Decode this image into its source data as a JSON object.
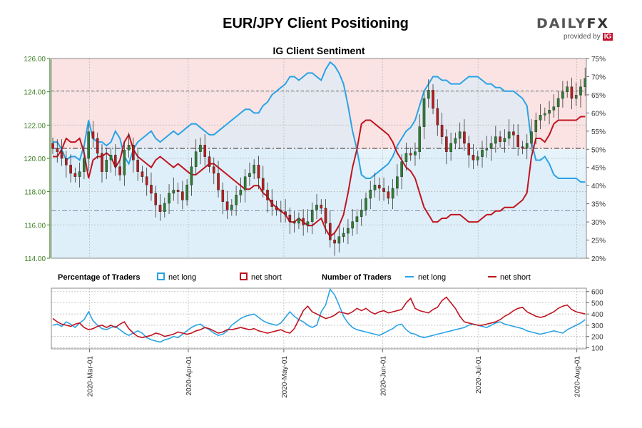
{
  "header": {
    "title": "EUR/JPY Client Positioning",
    "brand_name_left": "DAILY",
    "brand_name_right": "FX",
    "brand_sub": "provided by",
    "brand_ig": "IG"
  },
  "colors": {
    "net_long": "#2aa3e6",
    "net_short": "#c0141f",
    "candle_up": "#2e7d32",
    "candle_down": "#b71c1c",
    "long_fill": "#e6f3fb",
    "short_fill": "#fbe3e3",
    "price_axis": "#3a7d1f"
  },
  "chart_data": [
    {
      "type": "candlestick",
      "title": "IG Client Sentiment",
      "ylim": [
        114,
        126
      ],
      "yticks": [
        "114.00",
        "116.00",
        "118.00",
        "120.00",
        "122.00",
        "124.00",
        "126.00"
      ],
      "y2lim": [
        20,
        75
      ],
      "y2ticks": [
        "20%",
        "25%",
        "30%",
        "35%",
        "40%",
        "45%",
        "50%",
        "55%",
        "60%",
        "65%",
        "70%",
        "75%"
      ],
      "x_start": "2020-02-18",
      "x_end": "2020-08-04",
      "xticks": [
        "2020-Mar-01",
        "2020-Apr-01",
        "2020-May-01",
        "2020-Jun-01",
        "2020-Jul-01",
        "2020-Aug-01"
      ],
      "reference_lines": {
        "price_dashdot": 120.6,
        "price_dashed_upper": 124.05,
        "price_dashed_lower": 116.85
      },
      "close": [
        120.6,
        120.4,
        120.0,
        119.6,
        119.1,
        118.9,
        119.2,
        120.0,
        121.6,
        121.2,
        120.3,
        119.2,
        119.9,
        120.2,
        119.5,
        119.0,
        120.5,
        120.8,
        119.9,
        119.2,
        118.9,
        118.4,
        117.9,
        117.2,
        116.8,
        117.3,
        117.9,
        118.1,
        118.0,
        117.5,
        118.4,
        119.5,
        120.4,
        120.8,
        120.1,
        119.5,
        119.1,
        118.1,
        117.4,
        116.9,
        117.2,
        117.8,
        118.1,
        118.9,
        119.1,
        119.6,
        118.8,
        118.1,
        117.5,
        117.1,
        116.9,
        116.8,
        116.6,
        116.2,
        116.1,
        116.4,
        116.0,
        116.2,
        116.9,
        117.2,
        117.0,
        116.1,
        115.1,
        114.9,
        115.3,
        115.5,
        115.8,
        116.2,
        116.5,
        116.9,
        117.6,
        118.1,
        118.4,
        118.2,
        118.0,
        117.6,
        118.2,
        118.9,
        119.8,
        120.3,
        120.2,
        120.4,
        121.9,
        123.6,
        124.1,
        123.0,
        122.0,
        121.3,
        120.4,
        120.9,
        121.2,
        121.6,
        120.9,
        120.2,
        119.9,
        120.1,
        120.5,
        120.6,
        120.9,
        121.3,
        121.0,
        121.2,
        121.6,
        121.4,
        120.7,
        120.6,
        120.9,
        121.6,
        122.3,
        122.6,
        122.7,
        122.9,
        123.1,
        123.6,
        124.0,
        124.3,
        123.6,
        123.8,
        124.3,
        124.8
      ],
      "series": [
        {
          "name": "net long",
          "values": [
            52,
            52,
            50,
            47,
            48,
            48,
            47,
            51,
            58,
            53,
            52,
            52,
            51,
            52,
            55,
            53,
            48,
            46,
            50,
            52,
            53,
            54,
            55,
            53,
            52,
            53,
            54,
            55,
            54,
            55,
            56,
            57,
            57,
            56,
            55,
            54,
            54,
            55,
            56,
            57,
            58,
            59,
            60,
            61,
            61,
            60,
            60,
            62,
            63,
            65,
            66,
            67,
            68,
            70,
            70,
            69,
            70,
            71,
            71,
            70,
            69,
            72,
            74,
            73,
            71,
            68,
            62,
            55,
            50,
            43,
            42,
            42,
            43,
            44,
            45,
            46,
            48,
            51,
            53,
            55,
            56,
            58,
            62,
            66,
            68,
            70,
            70,
            69,
            69,
            68,
            68,
            68,
            69,
            70,
            70,
            70,
            69,
            68,
            68,
            67,
            67,
            66,
            66,
            66,
            65,
            64,
            62,
            52,
            47,
            47,
            48,
            46,
            43,
            42,
            42,
            42,
            42,
            42,
            41,
            41
          ]
        },
        {
          "name": "net short",
          "values": [
            48,
            48,
            50,
            53,
            52,
            52,
            53,
            49,
            42,
            47,
            48,
            48,
            49,
            48,
            45,
            47,
            52,
            54,
            50,
            48,
            47,
            46,
            45,
            47,
            48,
            47,
            46,
            45,
            46,
            45,
            44,
            43,
            43,
            44,
            45,
            46,
            46,
            45,
            44,
            43,
            42,
            41,
            40,
            39,
            39,
            40,
            40,
            38,
            37,
            35,
            34,
            33,
            32,
            30,
            30,
            31,
            30,
            29,
            29,
            30,
            31,
            28,
            26,
            27,
            29,
            32,
            38,
            45,
            50,
            57,
            58,
            58,
            57,
            56,
            55,
            54,
            52,
            49,
            47,
            45,
            44,
            42,
            38,
            34,
            32,
            30,
            30,
            31,
            31,
            32,
            32,
            32,
            31,
            30,
            30,
            30,
            31,
            32,
            32,
            33,
            33,
            34,
            34,
            34,
            35,
            36,
            38,
            48,
            53,
            53,
            52,
            54,
            57,
            58,
            58,
            58,
            58,
            58,
            59,
            59
          ]
        }
      ]
    },
    {
      "type": "line",
      "title": "Number of Traders",
      "ylim": [
        90,
        630
      ],
      "yticks": [
        "100",
        "200",
        "300",
        "400",
        "500",
        "600"
      ],
      "series": [
        {
          "name": "net long",
          "values": [
            300,
            310,
            290,
            330,
            310,
            280,
            320,
            350,
            420,
            340,
            300,
            270,
            260,
            280,
            290,
            260,
            230,
            210,
            230,
            250,
            230,
            190,
            170,
            160,
            150,
            170,
            180,
            200,
            190,
            220,
            250,
            280,
            300,
            310,
            280,
            260,
            230,
            210,
            220,
            250,
            300,
            330,
            360,
            380,
            390,
            400,
            370,
            340,
            320,
            310,
            300,
            320,
            370,
            420,
            380,
            350,
            330,
            300,
            280,
            300,
            420,
            480,
            620,
            570,
            480,
            380,
            320,
            280,
            260,
            250,
            240,
            230,
            220,
            210,
            230,
            250,
            270,
            300,
            310,
            260,
            230,
            220,
            200,
            190,
            200,
            210,
            220,
            230,
            240,
            250,
            260,
            270,
            280,
            300,
            310,
            300,
            290,
            280,
            300,
            320,
            330,
            310,
            300,
            290,
            280,
            270,
            250,
            240,
            230,
            220,
            230,
            240,
            250,
            240,
            230,
            260,
            280,
            300,
            320,
            350
          ]
        },
        {
          "name": "net short",
          "values": [
            360,
            330,
            310,
            300,
            290,
            310,
            320,
            280,
            260,
            270,
            290,
            300,
            280,
            300,
            280,
            310,
            330,
            270,
            230,
            200,
            190,
            200,
            210,
            230,
            220,
            200,
            210,
            220,
            240,
            230,
            220,
            230,
            250,
            260,
            280,
            270,
            250,
            230,
            240,
            260,
            260,
            270,
            280,
            270,
            260,
            270,
            250,
            240,
            230,
            240,
            250,
            260,
            240,
            230,
            270,
            350,
            430,
            470,
            420,
            400,
            380,
            360,
            370,
            390,
            420,
            410,
            400,
            420,
            450,
            430,
            450,
            420,
            400,
            420,
            430,
            410,
            420,
            430,
            440,
            500,
            540,
            450,
            430,
            420,
            410,
            440,
            460,
            520,
            550,
            500,
            450,
            380,
            330,
            320,
            310,
            300,
            300,
            310,
            320,
            330,
            350,
            380,
            400,
            430,
            450,
            460,
            420,
            400,
            380,
            370,
            380,
            400,
            420,
            450,
            470,
            480,
            440,
            420,
            410,
            400
          ]
        }
      ]
    }
  ],
  "legend": {
    "pct_title": "Percentage of Traders",
    "pct_long": "net long",
    "pct_short": "net short",
    "num_title": "Number of Traders",
    "num_long": "net long",
    "num_short": "net short"
  }
}
